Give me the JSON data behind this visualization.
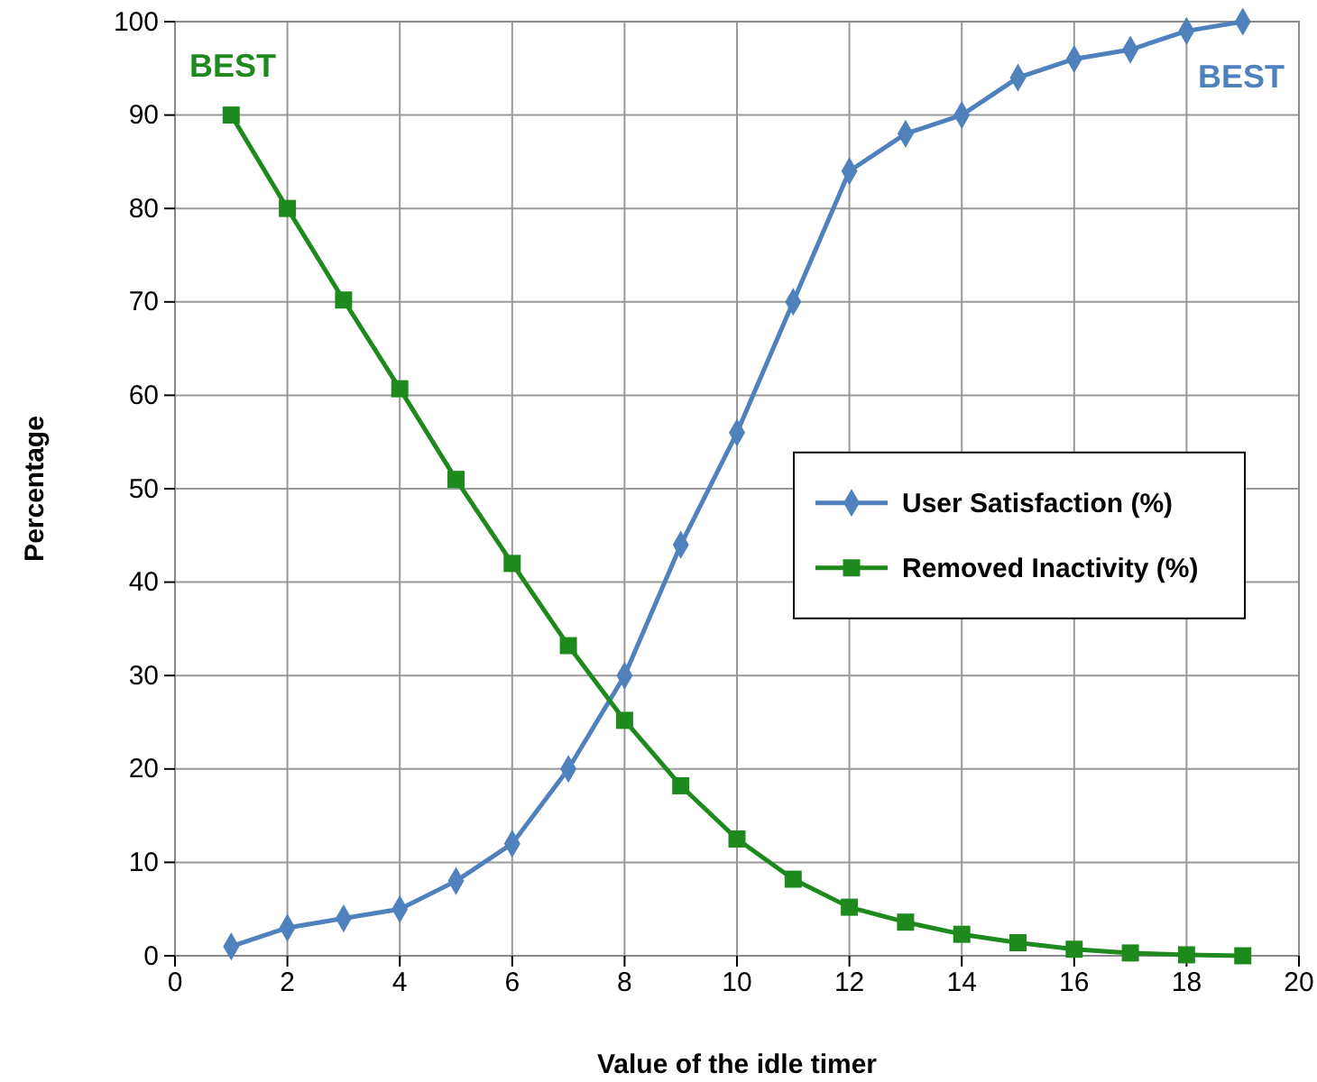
{
  "chart_data": {
    "type": "line",
    "xlabel": "Value of the idle timer",
    "ylabel": "Percentage",
    "x": [
      1,
      2,
      3,
      4,
      5,
      6,
      7,
      8,
      9,
      10,
      11,
      12,
      13,
      14,
      15,
      16,
      17,
      18,
      19
    ],
    "series": [
      {
        "name": "User Satisfaction (%)",
        "color": "#4f81bd",
        "marker": "diamond",
        "values": [
          1,
          3,
          4,
          5,
          8,
          12,
          20,
          30,
          44,
          56,
          70,
          84,
          88,
          90,
          94,
          96,
          97,
          99,
          100
        ]
      },
      {
        "name": "Removed Inactivity (%)",
        "color": "#1e8a1e",
        "marker": "square",
        "values": [
          90,
          80,
          70.2,
          60.7,
          51,
          42,
          33.2,
          25.2,
          18.2,
          12.5,
          8.2,
          5.2,
          3.6,
          2.3,
          1.4,
          0.7,
          0.3,
          0.1,
          0
        ]
      }
    ],
    "annotations": [
      "BEST",
      "BEST"
    ],
    "xlim": [
      0,
      20
    ],
    "xticks": [
      0,
      2,
      4,
      6,
      8,
      10,
      12,
      14,
      16,
      18,
      20
    ],
    "ylim": [
      0,
      100
    ],
    "yticks": [
      0,
      10,
      20,
      30,
      40,
      50,
      60,
      70,
      80,
      90,
      100
    ],
    "grid": true,
    "legend": "center right",
    "line_style": "solid"
  }
}
